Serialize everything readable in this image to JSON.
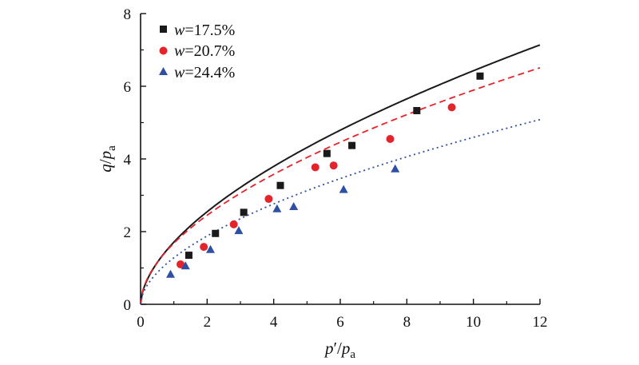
{
  "chart_data": {
    "type": "scatter",
    "xlabel": {
      "main": "p",
      "prime": "′",
      "sep": "/",
      "den": "p",
      "sub": "a"
    },
    "ylabel": {
      "main": "q",
      "sep": "/",
      "den": "p",
      "sub": "a"
    },
    "xlim": [
      0,
      12
    ],
    "ylim": [
      0,
      8
    ],
    "xticks": [
      0,
      2,
      4,
      6,
      8,
      10,
      12
    ],
    "yticks": [
      0,
      2,
      4,
      6,
      8
    ],
    "grid": false,
    "legend_position": "top-left",
    "series": [
      {
        "name": "w=17.5%",
        "legend_var": "w",
        "legend_val": "=17.5%",
        "marker": "square",
        "color": "#1a1a1a",
        "fit_line": "solid",
        "fit": {
          "a": 1.71,
          "b": 0.575
        },
        "x": [
          1.45,
          2.25,
          3.1,
          4.2,
          5.6,
          6.35,
          8.3,
          10.2
        ],
        "y": [
          1.35,
          1.95,
          2.53,
          3.27,
          4.15,
          4.37,
          5.33,
          6.28
        ]
      },
      {
        "name": "w=20.7%",
        "legend_var": "w",
        "legend_val": "=20.7%",
        "marker": "circle",
        "color": "#e3242b",
        "fit_line": "dashed",
        "fit": {
          "a": 1.68,
          "b": 0.545
        },
        "x": [
          1.2,
          1.9,
          2.8,
          3.85,
          5.25,
          5.8,
          7.5,
          9.35
        ],
        "y": [
          1.1,
          1.58,
          2.2,
          2.9,
          3.77,
          3.82,
          4.55,
          5.42
        ]
      },
      {
        "name": "w=24.4%",
        "legend_var": "w",
        "legend_val": "=24.4%",
        "marker": "triangle",
        "color": "#2e4fa3",
        "fit_line": "dotted",
        "fit": {
          "a": 1.28,
          "b": 0.555
        },
        "x": [
          0.9,
          1.35,
          2.1,
          2.95,
          4.1,
          4.6,
          6.1,
          7.65
        ],
        "y": [
          0.82,
          1.05,
          1.5,
          2.02,
          2.62,
          2.68,
          3.15,
          3.72
        ]
      }
    ]
  }
}
